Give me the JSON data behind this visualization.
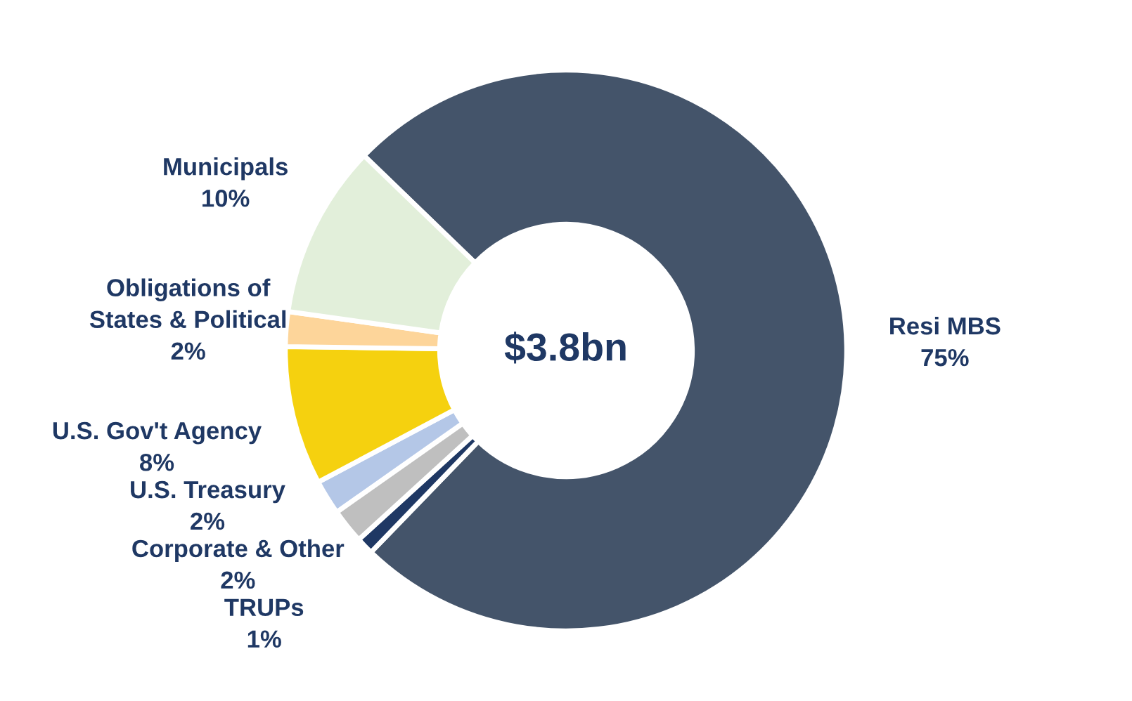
{
  "chart_data": {
    "type": "donut",
    "categories": [
      "Resi MBS",
      "TRUPs",
      "Corporate & Other",
      "U.S. Treasury",
      "U.S. Gov't Agency",
      "Obligations of\nStates & Political",
      "Municipals"
    ],
    "values": [
      75,
      1,
      2,
      2,
      8,
      2,
      10
    ],
    "value_labels": [
      "75%",
      "1%",
      "2%",
      "2%",
      "8%",
      "2%",
      "10%"
    ],
    "colors": [
      "#44546a",
      "#1f3864",
      "#bfbfbf",
      "#b4c7e7",
      "#f5d10f",
      "#fdd59a",
      "#e2efda"
    ],
    "annotations": [
      "$3.8bn"
    ]
  }
}
